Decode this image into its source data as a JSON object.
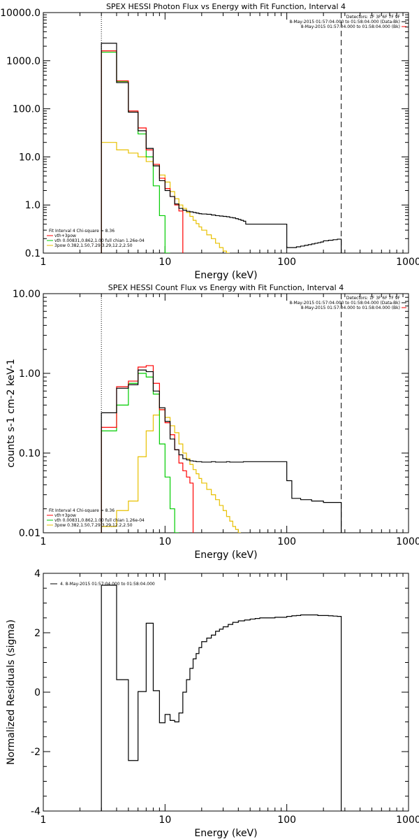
{
  "chart_data": [
    {
      "type": "line",
      "title": "SPEX HESSI Photon Flux vs Energy with Fit Function, Interval 4",
      "xlabel": "Energy (keV)",
      "ylabel": "",
      "xscale": "log",
      "yscale": "log",
      "xlim": [
        1,
        1000
      ],
      "ylim": [
        0.1,
        10000
      ],
      "x_ticks": [
        "1",
        "10",
        "100",
        "1000"
      ],
      "y_ticks": [
        "0.1",
        "1.0",
        "10.0",
        "100.0",
        "1000.0",
        "10000.0"
      ],
      "top_right_lines": [
        "Detectors: 1F 3F 6F 7F 9F",
        "8-May-2015 01:57:04.000 to 01:58:04.000 (Data-Bk)",
        "8-May-2015 01:57:04.000 to 01:58:04.000 (Bk)"
      ],
      "legend_lines": [
        "Fit Interval 4  Chi-square = 8.36",
        "vth+3pow",
        "vth 0.00831,0.862,1.00  full chian 1.26e-04",
        "3pow 0.382,1.50,7.29,3.29,12.2,2.50"
      ],
      "legend_colors": [
        "#000000",
        "#ff0000",
        "#00cc00",
        "#e8c000"
      ],
      "vline_dotted_x": 3,
      "vline_dashed_x": 280,
      "edges": [
        3,
        3.5,
        4,
        4.5,
        5,
        5.5,
        6,
        6.5,
        7,
        7.5,
        8,
        8.5,
        9,
        9.5,
        10,
        11,
        12,
        13,
        14,
        15,
        16,
        17,
        18,
        19,
        20,
        22,
        24,
        26,
        28,
        30,
        32,
        34,
        36,
        38,
        40,
        42,
        44,
        46,
        100,
        110,
        120,
        130,
        140,
        150,
        160,
        170,
        180,
        190,
        200,
        220,
        240,
        260,
        280
      ],
      "series": [
        {
          "name": "Data-Bk",
          "color": "#000000",
          "values": [
            2300,
            2300,
            350,
            350,
            85,
            85,
            35,
            35,
            15,
            15,
            6.5,
            6.5,
            3.2,
            3.2,
            2.0,
            1.5,
            1.05,
            0.85,
            0.78,
            0.74,
            0.72,
            0.7,
            0.68,
            0.66,
            0.65,
            0.64,
            0.62,
            0.6,
            0.59,
            0.58,
            0.57,
            0.55,
            0.54,
            0.52,
            0.5,
            0.48,
            0.46,
            0.4,
            0.13,
            0.13,
            0.135,
            0.14,
            0.145,
            0.15,
            0.155,
            0.16,
            0.165,
            0.17,
            0.18,
            0.185,
            0.19,
            0.195
          ]
        },
        {
          "name": "vth+3pow",
          "color": "#ff0000",
          "values": [
            1600,
            1600,
            380,
            380,
            90,
            90,
            40,
            40,
            14,
            14,
            7,
            7,
            3.6,
            3.6,
            2.2,
            1.5,
            1.0,
            0.75
          ]
        },
        {
          "name": "vth",
          "color": "#00cc00",
          "values": [
            1500,
            1500,
            370,
            370,
            85,
            85,
            30,
            30,
            10,
            10,
            2.5,
            2.5,
            0.6,
            0.6,
            0.1
          ]
        },
        {
          "name": "3pow",
          "color": "#e8c000",
          "values": [
            20,
            20,
            14,
            14,
            12,
            12,
            10,
            10,
            8,
            8,
            6.5,
            6.5,
            4.2,
            4.2,
            3.0,
            1.9,
            1.35,
            1.0,
            0.85,
            0.7,
            0.58,
            0.48,
            0.41,
            0.35,
            0.3,
            0.24,
            0.2,
            0.16,
            0.13,
            0.11,
            0.1
          ]
        }
      ]
    },
    {
      "type": "line",
      "title": "SPEX HESSI Count Flux vs Energy with Fit Function, Interval 4",
      "xlabel": "Energy (keV)",
      "ylabel": "counts s-1 cm-2 keV-1",
      "xscale": "log",
      "yscale": "log",
      "xlim": [
        1,
        1000
      ],
      "ylim": [
        0.01,
        10
      ],
      "x_ticks": [
        "1",
        "10",
        "100",
        "1000"
      ],
      "y_ticks": [
        "0.01",
        "0.10",
        "1.00",
        "10.00"
      ],
      "top_right_lines": [
        "Detectors: 1F 3F 6F 7F 9F",
        "8-May-2015 01:57:04.000 to 01:58:04.000 (Data-Bk)",
        "8-May-2015 01:57:04.000 to 01:58:04.000 (Bk)"
      ],
      "legend_lines": [
        "Fit Interval 4  Chi-square = 8.36",
        "vth+3pow",
        "vth 0.00831,0.862,1.00  full chian 1.26e-04",
        "3pow 0.382,1.50,7.29,3.29,12.2,2.50"
      ],
      "legend_colors": [
        "#000000",
        "#ff0000",
        "#00cc00",
        "#e8c000"
      ],
      "vline_dotted_x": 3,
      "vline_dashed_x": 280,
      "edges": [
        3,
        3.5,
        4,
        4.5,
        5,
        5.5,
        6,
        6.5,
        7,
        7.5,
        8,
        8.5,
        9,
        9.5,
        10,
        11,
        12,
        13,
        14,
        15,
        16,
        17,
        18,
        19,
        20,
        22,
        24,
        26,
        28,
        30,
        32,
        34,
        36,
        38,
        40,
        42,
        44,
        46,
        100,
        110,
        120,
        130,
        140,
        150,
        160,
        170,
        180,
        190,
        200,
        220,
        240,
        260,
        280
      ],
      "series": [
        {
          "name": "Data-Bk",
          "color": "#000000",
          "values": [
            0.32,
            0.32,
            0.65,
            0.65,
            0.72,
            0.72,
            1.1,
            1.1,
            1.05,
            1.05,
            0.6,
            0.6,
            0.37,
            0.37,
            0.25,
            0.15,
            0.11,
            0.095,
            0.085,
            0.082,
            0.08,
            0.079,
            0.078,
            0.078,
            0.077,
            0.077,
            0.078,
            0.077,
            0.077,
            0.077,
            0.078,
            0.077,
            0.077,
            0.077,
            0.077,
            0.077,
            0.078,
            0.078,
            0.045,
            0.027,
            0.027,
            0.026,
            0.026,
            0.026,
            0.025,
            0.025,
            0.025,
            0.025,
            0.024,
            0.024,
            0.024,
            0.024
          ]
        },
        {
          "name": "vth+3pow",
          "color": "#ff0000",
          "values": [
            0.21,
            0.21,
            0.68,
            0.68,
            0.8,
            0.8,
            1.2,
            1.2,
            1.25,
            1.25,
            0.75,
            0.75,
            0.35,
            0.35,
            0.24,
            0.17,
            0.11,
            0.075,
            0.06,
            0.05,
            0.042
          ]
        },
        {
          "name": "vth",
          "color": "#00cc00",
          "values": [
            0.19,
            0.19,
            0.4,
            0.4,
            0.75,
            0.75,
            1.0,
            1.0,
            0.9,
            0.9,
            0.55,
            0.55,
            0.13,
            0.13,
            0.05,
            0.02,
            0.01
          ]
        },
        {
          "name": "3pow",
          "color": "#e8c000",
          "values": [
            0.012,
            0.012,
            0.019,
            0.019,
            0.025,
            0.025,
            0.09,
            0.09,
            0.19,
            0.19,
            0.3,
            0.3,
            0.35,
            0.35,
            0.28,
            0.22,
            0.18,
            0.13,
            0.1,
            0.085,
            0.072,
            0.062,
            0.055,
            0.048,
            0.042,
            0.035,
            0.03,
            0.026,
            0.022,
            0.019,
            0.016,
            0.014,
            0.012,
            0.011,
            0.01
          ]
        }
      ]
    },
    {
      "type": "line",
      "title": "",
      "xlabel": "Energy (keV)",
      "ylabel": "Normalized Residuals (sigma)",
      "xscale": "log",
      "yscale": "linear",
      "xlim": [
        1,
        1000
      ],
      "ylim": [
        -4,
        4
      ],
      "x_ticks": [
        "1",
        "10",
        "100",
        "1000"
      ],
      "y_ticks": [
        "-4",
        "-2",
        "0",
        "2",
        "4"
      ],
      "legend_lines": [
        "4.  8-May-2015 01:57:04.000 to 01:58:04.000"
      ],
      "legend_colors": [
        "#000000"
      ],
      "edges": [
        3,
        4,
        5,
        6,
        7,
        8,
        9,
        10,
        11,
        12,
        13,
        14,
        15,
        16,
        17,
        18,
        19,
        20,
        22,
        24,
        26,
        28,
        30,
        33,
        36,
        40,
        45,
        50,
        55,
        60,
        70,
        80,
        90,
        100,
        110,
        120,
        130,
        140,
        150,
        160,
        170,
        180,
        200,
        220,
        240,
        260,
        280
      ],
      "series": [
        {
          "name": "4.  8-May-2015 01:57:04.000 to 01:58:04.000",
          "color": "#000000",
          "values": [
            3.6,
            0.42,
            -2.3,
            0.02,
            2.32,
            0.05,
            -1.03,
            -0.75,
            -0.95,
            -1.0,
            -0.7,
            0.0,
            0.42,
            0.8,
            1.12,
            1.3,
            1.5,
            1.7,
            1.82,
            1.92,
            2.05,
            2.12,
            2.2,
            2.28,
            2.35,
            2.4,
            2.43,
            2.46,
            2.48,
            2.5,
            2.5,
            2.52,
            2.52,
            2.55,
            2.57,
            2.58,
            2.6,
            2.6,
            2.6,
            2.6,
            2.6,
            2.58,
            2.58,
            2.57,
            2.56,
            2.55
          ]
        }
      ]
    }
  ]
}
